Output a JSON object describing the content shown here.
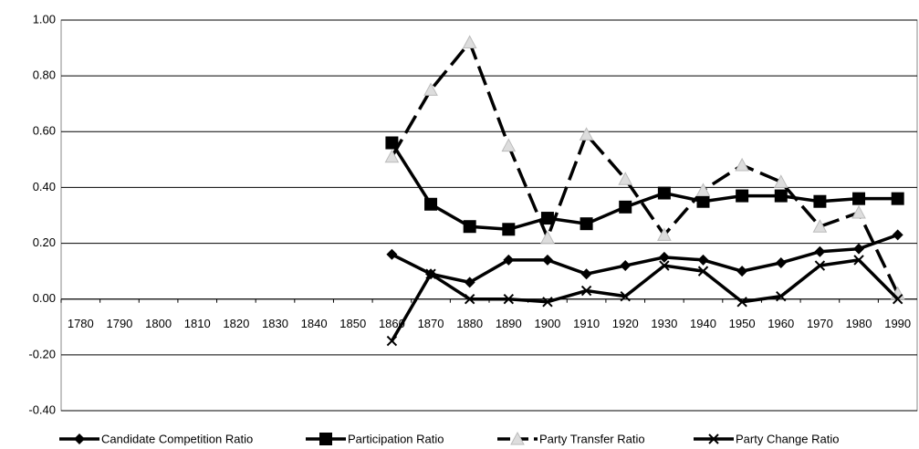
{
  "chart_data": {
    "type": "line",
    "categories": [
      "1780",
      "1790",
      "1800",
      "1810",
      "1820",
      "1830",
      "1840",
      "1850",
      "1860",
      "1870",
      "1880",
      "1890",
      "1900",
      "1910",
      "1920",
      "1930",
      "1940",
      "1950",
      "1960",
      "1970",
      "1980",
      "1990"
    ],
    "series": [
      {
        "name": "Candidate Competition Ratio",
        "color": "#000000",
        "marker": "diamond",
        "dashed": false,
        "values": [
          null,
          null,
          null,
          null,
          null,
          null,
          null,
          null,
          0.16,
          0.09,
          0.06,
          0.14,
          0.14,
          0.09,
          0.12,
          0.15,
          0.14,
          0.1,
          0.13,
          0.17,
          0.18,
          0.23
        ]
      },
      {
        "name": "Participation Ratio",
        "color": "#000000",
        "marker": "square",
        "dashed": false,
        "values": [
          null,
          null,
          null,
          null,
          null,
          null,
          null,
          null,
          0.56,
          0.34,
          0.26,
          0.25,
          0.29,
          0.27,
          0.33,
          0.38,
          0.35,
          0.37,
          0.37,
          0.35,
          0.36,
          0.36
        ]
      },
      {
        "name": "Party Transfer Ratio",
        "color": "#000000",
        "marker": "triangle",
        "dashed": true,
        "values": [
          null,
          null,
          null,
          null,
          null,
          null,
          null,
          null,
          0.51,
          0.75,
          0.92,
          0.55,
          0.22,
          0.59,
          0.43,
          0.23,
          0.39,
          0.48,
          0.42,
          0.26,
          0.31,
          0.02
        ]
      },
      {
        "name": "Party Change Ratio",
        "color": "#000000",
        "marker": "x",
        "dashed": false,
        "values": [
          null,
          null,
          null,
          null,
          null,
          null,
          null,
          null,
          -0.15,
          0.09,
          0.0,
          0.0,
          -0.01,
          0.03,
          0.01,
          0.12,
          0.1,
          -0.01,
          0.01,
          0.12,
          0.14,
          0.0
        ]
      }
    ],
    "ylim": [
      -0.4,
      1.0
    ],
    "yticks": [
      {
        "value": -0.4,
        "label": "-0.40"
      },
      {
        "value": -0.2,
        "label": "-0.20"
      },
      {
        "value": 0,
        "label": "0.00"
      },
      {
        "value": 0.2,
        "label": "0.20"
      },
      {
        "value": 0.4,
        "label": "0.40"
      },
      {
        "value": 0.6,
        "label": "0.60"
      },
      {
        "value": 0.8,
        "label": "0.80"
      },
      {
        "value": 1.0,
        "label": "1.00"
      }
    ],
    "grid": true,
    "legend": "bottom"
  }
}
